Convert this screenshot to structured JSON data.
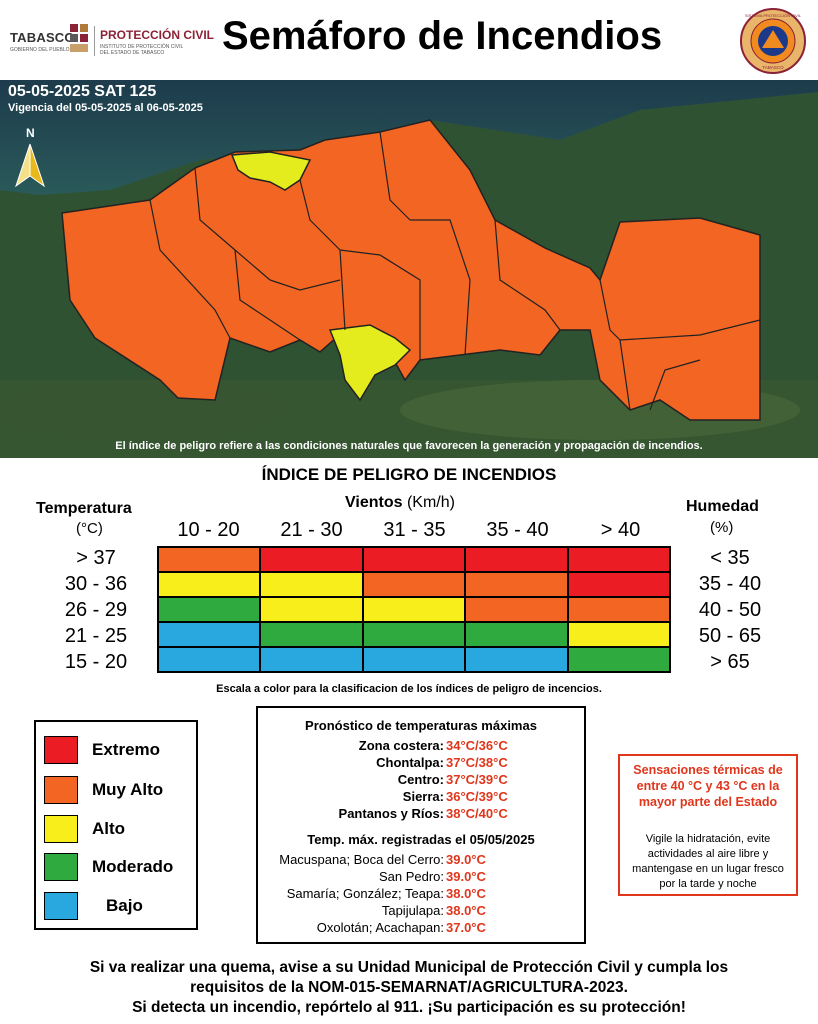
{
  "header": {
    "logo_tabasco": "TABASCO",
    "logo_tabasco_sub": "GOBIERNO DEL PUEBLO",
    "logo_pc": "PROTECCIÓN CIVIL",
    "logo_pc_sub1": "INSTITUTO DE PROTECCIÓN CIVIL",
    "logo_pc_sub2": "DEL ESTADO DE TABASCO",
    "title": "Semáforo de Incendios",
    "seal_text_top": "SISTEMA PROTECCIÓN CIVIL",
    "seal_text_bottom": "TABASCO"
  },
  "map": {
    "bulletin_id": "05-05-2025 SAT 125",
    "validity": "Vigencia del 05-05-2025 al 06-05-2025",
    "north_label": "N",
    "note": "El índice de peligro refiere a las condiciones naturales que favorecen la generación y propagación de incendios.",
    "colors": {
      "muy_alto": "#f26522",
      "alto": "#e5ec1d",
      "outline": "#222222"
    }
  },
  "index_table": {
    "title": "ÍNDICE DE PELIGRO DE INCENDIOS",
    "wind_title": "Vientos",
    "wind_unit": "(Km/h)",
    "temp_title": "Temperatura",
    "temp_unit": "(°C)",
    "hum_title": "Humedad",
    "hum_unit": "(%)",
    "wind_categories": [
      "10 - 20",
      "21 - 30",
      "31 - 35",
      "35 - 40",
      "> 40"
    ],
    "temp_rows": [
      "> 37",
      "30 - 36",
      "26 - 29",
      "21 - 25",
      "15 - 20"
    ],
    "hum_rows": [
      "< 35",
      "35 - 40",
      "40 - 50",
      "50 - 65",
      "> 65"
    ],
    "grid": [
      [
        "muy_alto",
        "extremo",
        "extremo",
        "extremo",
        "extremo"
      ],
      [
        "alto",
        "alto",
        "muy_alto",
        "muy_alto",
        "extremo"
      ],
      [
        "moderado",
        "alto",
        "alto",
        "muy_alto",
        "muy_alto"
      ],
      [
        "bajo",
        "moderado",
        "moderado",
        "moderado",
        "alto"
      ],
      [
        "bajo",
        "bajo",
        "bajo",
        "bajo",
        "moderado"
      ]
    ],
    "scale_note": "Escala a color para la clasificacion de los índices de peligro de incencios."
  },
  "palette": {
    "extremo": "#ec1c24",
    "muy_alto": "#f26522",
    "alto": "#f7ee1c",
    "moderado": "#2eaa3f",
    "bajo": "#29a8e0"
  },
  "legend": [
    {
      "key": "extremo",
      "label": "Extremo"
    },
    {
      "key": "muy_alto",
      "label": "Muy Alto"
    },
    {
      "key": "alto",
      "label": "Alto"
    },
    {
      "key": "moderado",
      "label": "Moderado"
    },
    {
      "key": "bajo",
      "label": "Bajo"
    }
  ],
  "forecast": {
    "title": "Pronóstico de temperaturas máximas",
    "rows": [
      {
        "label": "Zona costera:",
        "value": "34°C/36°C"
      },
      {
        "label": "Chontalpa:",
        "value": "37°C/38°C"
      },
      {
        "label": "Centro:",
        "value": "37°C/39°C"
      },
      {
        "label": "Sierra:",
        "value": "36°C/39°C"
      },
      {
        "label": "Pantanos y Ríos:",
        "value": "38°C/40°C"
      }
    ],
    "recorded_title": "Temp. máx. registradas el 05/05/2025",
    "recorded": [
      {
        "label": "Macuspana; Boca del Cerro:",
        "value": "39.0°C"
      },
      {
        "label": "San Pedro:",
        "value": "39.0°C"
      },
      {
        "label": "Samaría; González; Teapa:",
        "value": "38.0°C"
      },
      {
        "label": "Tapijulapa:",
        "value": "38.0°C"
      },
      {
        "label": "Oxolotán; Acachapan:",
        "value": "37.0°C"
      }
    ]
  },
  "heat_box": {
    "title": "Sensaciones térmicas de entre 40 °C y 43 °C en la mayor parte del Estado",
    "body": "Vigile la hidratación, evite actividades al aire libre y mantengase en un lugar fresco por la tarde y noche"
  },
  "footer": {
    "line1": "Si va realizar una quema, avise a su Unidad Municipal de Protección Civil y cumpla los",
    "line2": "requisitos de la NOM-015-SEMARNAT/AGRICULTURA-2023.",
    "line3": "Si detecta un incendio, repórtelo al 911. ¡Su participación es su protección!"
  }
}
